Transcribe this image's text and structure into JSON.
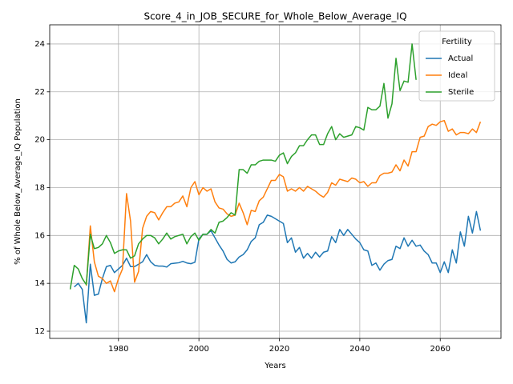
{
  "chart_data": {
    "type": "line",
    "title": "Score_4_in_JOB_SECURE_for_Whole_Below_Average_IQ",
    "xlabel": "Years",
    "ylabel": "% of Whole Below_Average_IQ Population",
    "x": [
      1968,
      1969,
      1970,
      1971,
      1972,
      1973,
      1974,
      1975,
      1976,
      1977,
      1978,
      1979,
      1980,
      1981,
      1982,
      1983,
      1984,
      1985,
      1986,
      1987,
      1988,
      1989,
      1990,
      1991,
      1992,
      1993,
      1994,
      1995,
      1996,
      1997,
      1998,
      1999,
      2000,
      2001,
      2002,
      2003,
      2004,
      2005,
      2006,
      2007,
      2008,
      2009,
      2010,
      2011,
      2012,
      2013,
      2014,
      2015,
      2016,
      2017,
      2018,
      2019,
      2020,
      2021,
      2022,
      2023,
      2024,
      2025,
      2026,
      2027,
      2028,
      2029,
      2030,
      2031,
      2032,
      2033,
      2034,
      2035,
      2036,
      2037,
      2038,
      2039,
      2040,
      2041,
      2042,
      2043,
      2044,
      2045,
      2046,
      2047,
      2048,
      2049,
      2050,
      2051,
      2052,
      2053,
      2054,
      2055,
      2056,
      2057,
      2058,
      2059,
      2060,
      2061,
      2062,
      2063,
      2064,
      2065,
      2066,
      2067,
      2068,
      2069,
      2070
    ],
    "series": [
      {
        "name": "Actual",
        "color": "#1f77b4",
        "values": [
          null,
          13.85,
          14.0,
          13.75,
          12.35,
          14.8,
          13.5,
          13.55,
          14.2,
          14.7,
          14.75,
          14.45,
          14.6,
          14.75,
          15.05,
          14.7,
          14.7,
          14.8,
          14.9,
          15.2,
          14.9,
          14.75,
          14.72,
          14.72,
          14.68,
          14.82,
          14.84,
          14.86,
          14.92,
          14.85,
          14.82,
          14.88,
          15.85,
          16.05,
          16.05,
          16.2,
          15.9,
          15.6,
          15.35,
          15.0,
          14.85,
          14.9,
          15.1,
          15.2,
          15.4,
          15.75,
          15.9,
          16.45,
          16.55,
          16.85,
          16.8,
          16.7,
          16.6,
          16.5,
          15.7,
          15.9,
          15.3,
          15.5,
          15.05,
          15.25,
          15.05,
          15.3,
          15.1,
          15.3,
          15.35,
          15.95,
          15.7,
          16.25,
          16.0,
          16.25,
          16.05,
          15.85,
          15.7,
          15.4,
          15.35,
          14.75,
          14.85,
          14.55,
          14.8,
          14.95,
          15.0,
          15.55,
          15.45,
          15.9,
          15.55,
          15.8,
          15.55,
          15.6,
          15.35,
          15.2,
          14.85,
          14.85,
          14.45,
          14.9,
          14.45,
          15.4,
          14.85,
          16.15,
          15.55,
          16.8,
          16.1,
          17.0,
          16.2
        ]
      },
      {
        "name": "Ideal",
        "color": "#ff7f0e",
        "values": [
          null,
          null,
          null,
          null,
          13.9,
          16.4,
          14.9,
          14.3,
          14.2,
          14.0,
          14.1,
          13.65,
          14.2,
          14.6,
          17.75,
          16.6,
          14.05,
          14.5,
          16.3,
          16.8,
          17.0,
          16.95,
          16.65,
          16.95,
          17.2,
          17.2,
          17.35,
          17.4,
          17.65,
          17.2,
          18.0,
          18.25,
          17.7,
          18.0,
          17.85,
          17.95,
          17.4,
          17.15,
          17.1,
          16.9,
          16.8,
          16.85,
          17.35,
          16.95,
          16.45,
          17.05,
          17.0,
          17.45,
          17.6,
          17.95,
          18.3,
          18.3,
          18.55,
          18.45,
          17.85,
          17.95,
          17.85,
          18.0,
          17.85,
          18.05,
          17.95,
          17.85,
          17.7,
          17.6,
          17.8,
          18.2,
          18.1,
          18.35,
          18.3,
          18.25,
          18.4,
          18.35,
          18.2,
          18.25,
          18.05,
          18.2,
          18.2,
          18.5,
          18.6,
          18.6,
          18.65,
          18.95,
          18.7,
          19.15,
          18.9,
          19.5,
          19.5,
          20.1,
          20.15,
          20.55,
          20.65,
          20.6,
          20.75,
          20.8,
          20.35,
          20.45,
          20.2,
          20.3,
          20.3,
          20.25,
          20.45,
          20.3,
          20.75
        ]
      },
      {
        "name": "Sterile",
        "color": "#2ca02c",
        "values": [
          13.75,
          14.75,
          14.6,
          14.2,
          13.95,
          16.05,
          15.45,
          15.5,
          15.65,
          16.0,
          15.7,
          15.25,
          15.35,
          15.4,
          15.4,
          15.05,
          15.15,
          15.65,
          15.85,
          16.0,
          16.0,
          15.9,
          15.65,
          15.85,
          16.1,
          15.85,
          15.95,
          16.0,
          16.05,
          15.65,
          15.95,
          16.1,
          15.8,
          16.05,
          16.05,
          16.25,
          16.1,
          16.55,
          16.6,
          16.75,
          16.95,
          16.85,
          18.75,
          18.75,
          18.6,
          18.95,
          18.95,
          19.1,
          19.15,
          19.15,
          19.15,
          19.1,
          19.35,
          19.45,
          19.0,
          19.3,
          19.45,
          19.75,
          19.75,
          20.0,
          20.2,
          20.2,
          19.8,
          19.8,
          20.25,
          20.55,
          20.0,
          20.25,
          20.1,
          20.15,
          20.2,
          20.55,
          20.5,
          20.4,
          21.35,
          21.25,
          21.25,
          21.4,
          22.35,
          20.9,
          21.5,
          23.4,
          22.05,
          22.45,
          22.4,
          24.0,
          22.5,
          null,
          null,
          null,
          null,
          null,
          null,
          null,
          null,
          null,
          null,
          null,
          null,
          null,
          null,
          null,
          null
        ]
      }
    ],
    "xlim": [
      1962.9,
      2075.1
    ],
    "xticks": [
      1980,
      2000,
      2020,
      2040,
      2060
    ],
    "ylim": [
      11.7,
      24.8
    ],
    "yticks": [
      12,
      14,
      16,
      18,
      20,
      22,
      24
    ],
    "grid": true,
    "legend": "upper right",
    "legend_title": "Fertility"
  }
}
